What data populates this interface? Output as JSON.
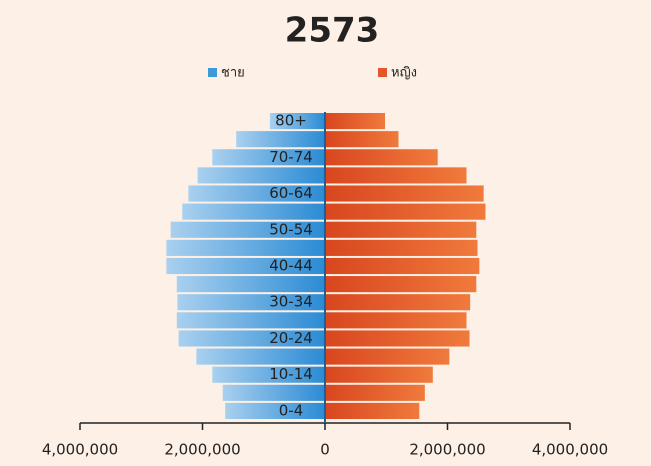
{
  "chart_data": {
    "type": "pyramid",
    "title": "2573",
    "categories": [
      "0-4",
      null,
      "10-14",
      null,
      "20-24",
      null,
      "30-34",
      null,
      "40-44",
      null,
      "50-54",
      null,
      "60-64",
      null,
      "70-74",
      null,
      "80+"
    ],
    "series": [
      {
        "name": "ชาย",
        "color": "#3d9ad9",
        "values": [
          -1630000,
          -1670000,
          -1840000,
          -2100000,
          -2390000,
          -2420000,
          -2410000,
          -2420000,
          -2590000,
          -2590000,
          -2520000,
          -2330000,
          -2230000,
          -2080000,
          -1840000,
          -1450000,
          -900000
        ]
      },
      {
        "name": "หญิง",
        "color": "#e2562a",
        "values": [
          1540000,
          1630000,
          1760000,
          2030000,
          2360000,
          2310000,
          2370000,
          2470000,
          2520000,
          2490000,
          2470000,
          2620000,
          2590000,
          2310000,
          1840000,
          1200000,
          980000
        ]
      }
    ],
    "xlim": [
      -4000000,
      4000000
    ],
    "xticks": [
      {
        "value": -4000000,
        "label": "4,000,000"
      },
      {
        "value": -2000000,
        "label": "2,000,000"
      },
      0,
      {
        "value": 2000000,
        "label": "2,000,000"
      },
      {
        "value": 4000000,
        "label": "4,000,000"
      }
    ]
  }
}
